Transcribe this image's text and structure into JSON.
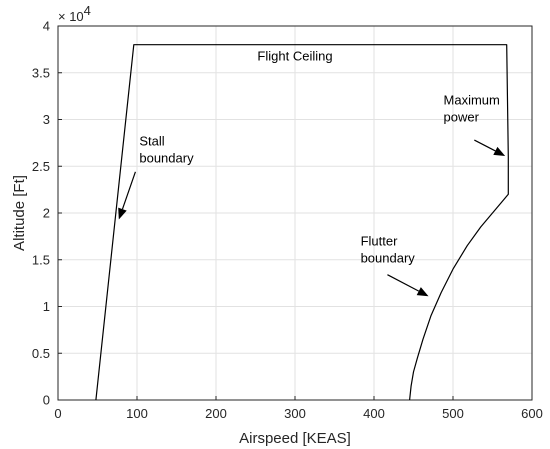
{
  "chart_data": {
    "type": "line",
    "xlabel": "Airspeed [KEAS]",
    "ylabel": "Altitude [Ft]",
    "xlim": [
      0,
      600
    ],
    "ylim": [
      0,
      40000
    ],
    "grid": true,
    "x_ticks": [
      0,
      100,
      200,
      300,
      400,
      500,
      600
    ],
    "x_tick_labels": [
      "0",
      "100",
      "200",
      "300",
      "400",
      "500",
      "600"
    ],
    "y_ticks": [
      0,
      5000,
      10000,
      15000,
      20000,
      25000,
      30000,
      35000,
      40000
    ],
    "y_tick_labels": [
      "0",
      "0.5",
      "1",
      "1.5",
      "2",
      "2.5",
      "3",
      "3.5",
      "4"
    ],
    "y_exponent_base": "× 10",
    "y_exponent_power": "4",
    "line_color": "#000000",
    "series": [
      {
        "x": [
          48,
          96,
          568,
          570,
          570,
          562,
          550,
          535,
          518,
          500,
          485,
          472,
          462,
          455,
          450,
          447,
          445
        ],
        "y": [
          0,
          38000,
          38000,
          26000,
          22000,
          21200,
          20000,
          18500,
          16500,
          14000,
          11500,
          9000,
          6500,
          4500,
          3000,
          1500,
          0
        ]
      }
    ],
    "annotations": [
      {
        "lines": [
          "Flight Ceiling"
        ],
        "text_x": 300,
        "text_y": 36300,
        "arrow": null
      },
      {
        "lines": [
          "Stall",
          "boundary"
        ],
        "text_x": 103,
        "text_y": 27200,
        "arrow": {
          "from": [
            98,
            24400
          ],
          "to": [
            77,
            19300
          ]
        }
      },
      {
        "lines": [
          "Maximum",
          "power"
        ],
        "text_x": 488,
        "text_y": 31600,
        "arrow": {
          "from": [
            527,
            27800
          ],
          "to": [
            566,
            26100
          ]
        }
      },
      {
        "lines": [
          "Flutter",
          "boundary"
        ],
        "text_x": 383,
        "text_y": 16500,
        "arrow": {
          "from": [
            417,
            13400
          ],
          "to": [
            469,
            11100
          ]
        }
      }
    ]
  }
}
